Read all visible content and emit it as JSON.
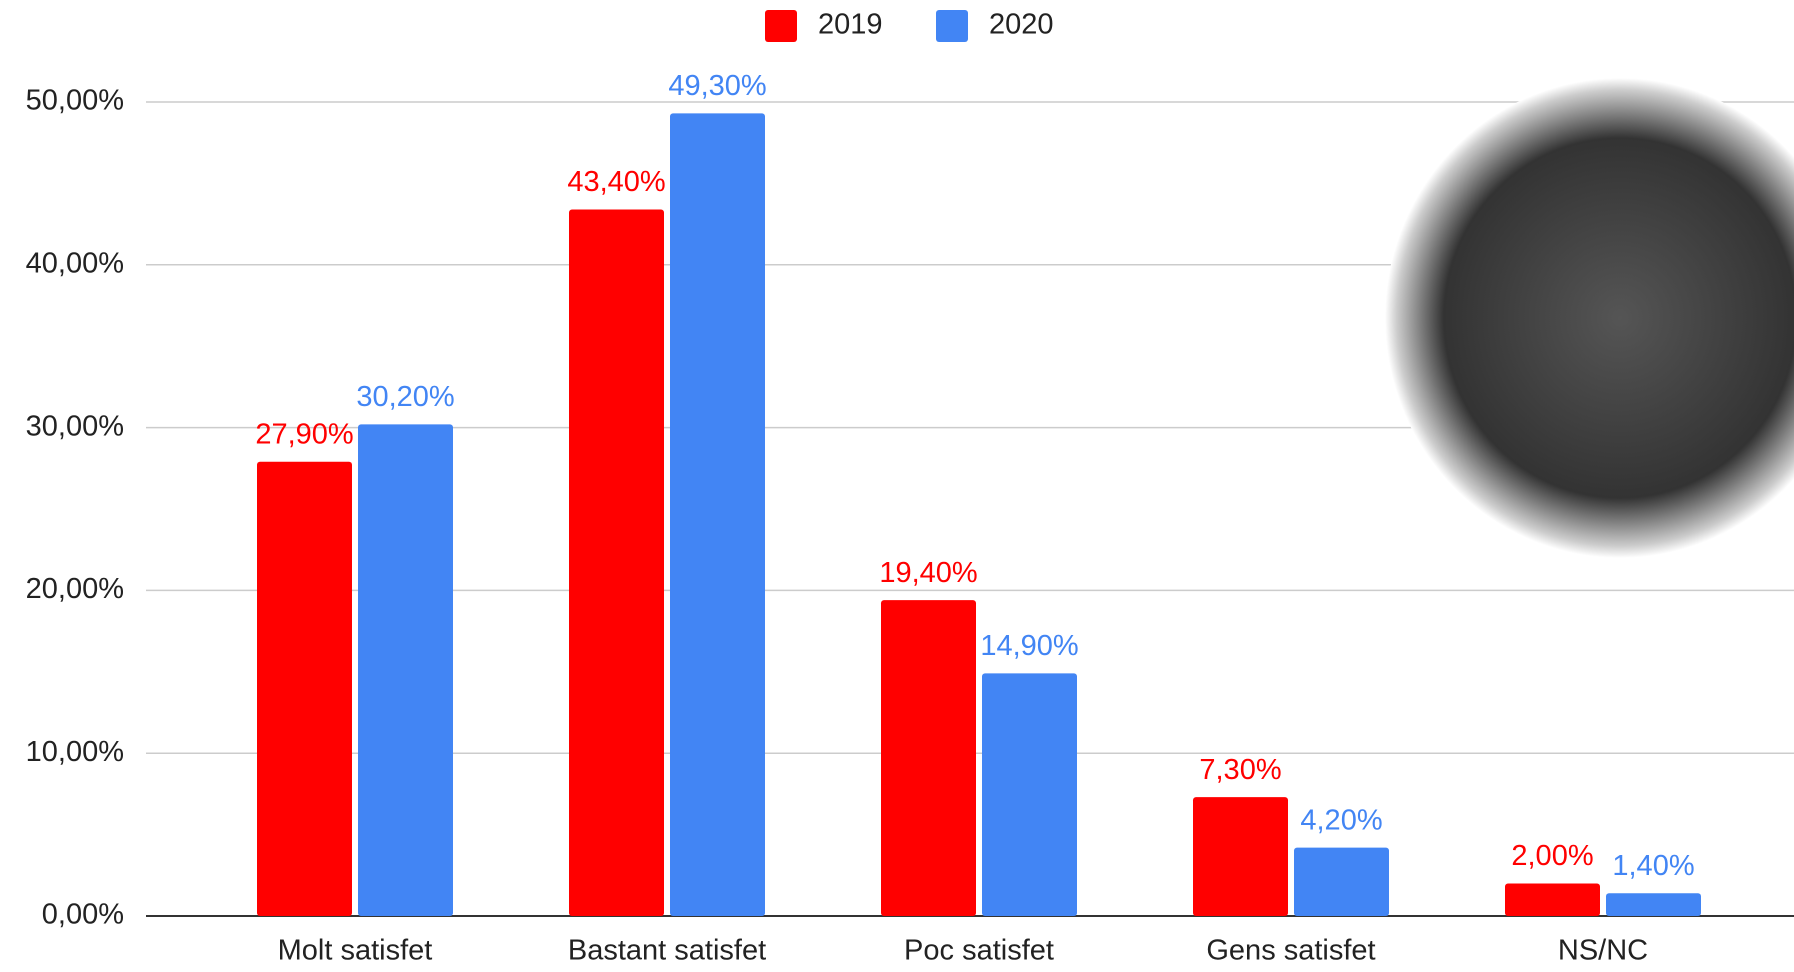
{
  "chart_data": {
    "type": "bar",
    "categories": [
      "Molt satisfet",
      "Bastant satisfet",
      "Poc satisfet",
      "Gens satisfet",
      "NS/NC"
    ],
    "series": [
      {
        "name": "2019",
        "color": "#ff0000",
        "values": [
          27.9,
          43.4,
          19.4,
          7.3,
          2.0
        ],
        "value_labels": [
          "27,90%",
          "43,40%",
          "19,40%",
          "7,30%",
          "2,00%"
        ]
      },
      {
        "name": "2020",
        "color": "#4285f4",
        "values": [
          30.2,
          49.3,
          14.9,
          4.2,
          1.4
        ],
        "value_labels": [
          "30,20%",
          "49,30%",
          "14,90%",
          "4,20%",
          "1,40%"
        ]
      }
    ],
    "ylim": [
      0,
      50
    ],
    "yticks": [
      {
        "value": 0,
        "label": "0,00%"
      },
      {
        "value": 10,
        "label": "10,00%"
      },
      {
        "value": 20,
        "label": "20,00%"
      },
      {
        "value": 30,
        "label": "30,00%"
      },
      {
        "value": 40,
        "label": "40,00%"
      },
      {
        "value": 50,
        "label": "50,00%"
      }
    ],
    "grid": true,
    "legend": "top"
  }
}
